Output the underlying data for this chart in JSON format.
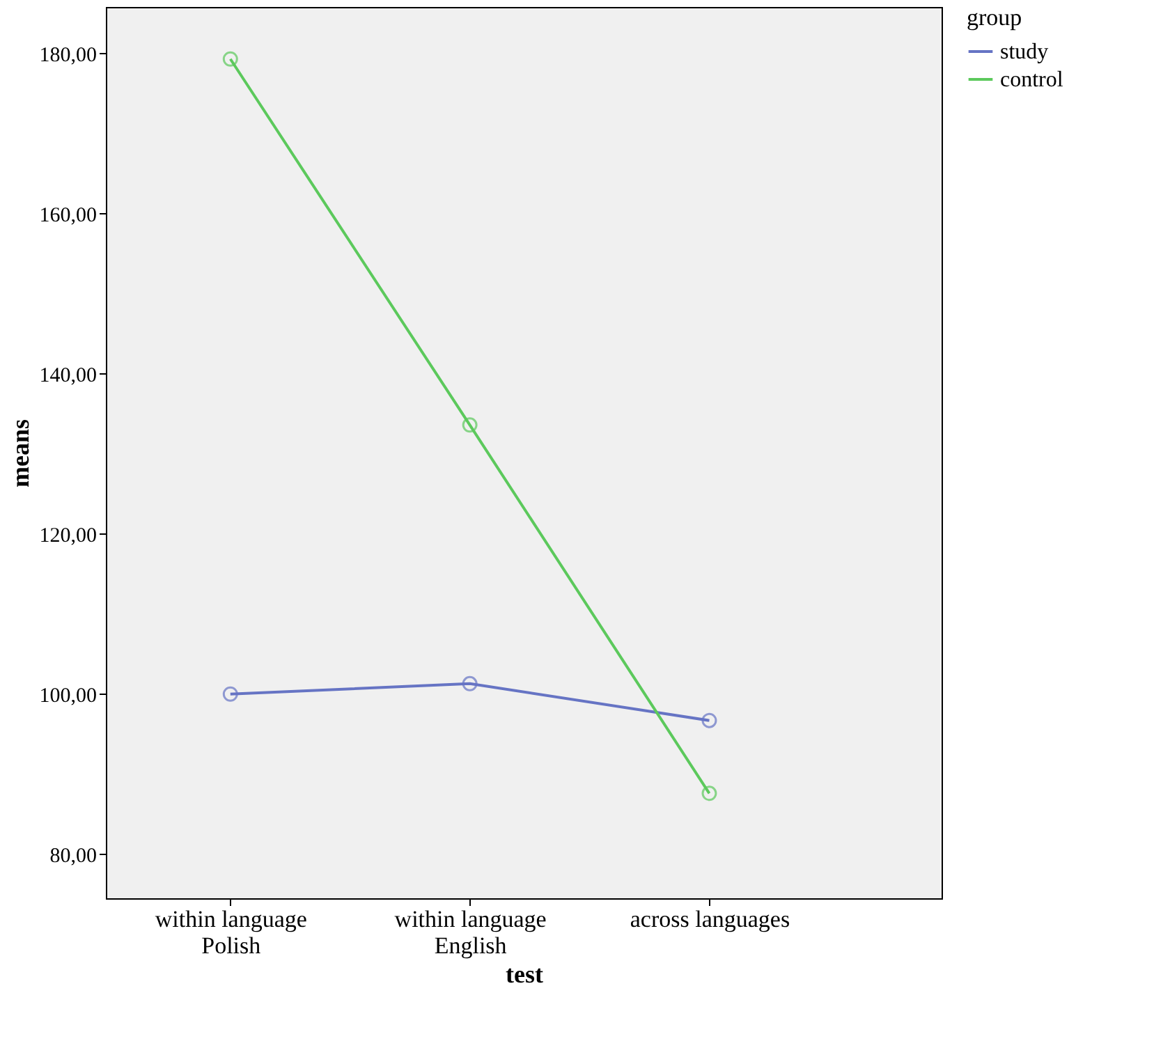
{
  "chart_data": {
    "type": "line",
    "xlabel": "test",
    "ylabel": "means",
    "legend_title": "group",
    "categories": [
      "within language\nPolish",
      "within language\nEnglish",
      "across languages"
    ],
    "series": [
      {
        "name": "study",
        "color": "#6674c4",
        "values": [
          100.0,
          101.3,
          96.7
        ]
      },
      {
        "name": "control",
        "color": "#5cc95c",
        "values": [
          179.3,
          133.6,
          87.6
        ]
      }
    ],
    "ylim": [
      74.5,
      185.8
    ],
    "yticks": [
      {
        "value": 80,
        "label": "80,00"
      },
      {
        "value": 100,
        "label": "100,00"
      },
      {
        "value": 120,
        "label": "120,00"
      },
      {
        "value": 140,
        "label": "140,00"
      },
      {
        "value": 160,
        "label": "160,00"
      },
      {
        "value": 180,
        "label": "180,00"
      }
    ],
    "marker": "circle",
    "line_style": "solid",
    "grid": false,
    "legend": "top right"
  }
}
